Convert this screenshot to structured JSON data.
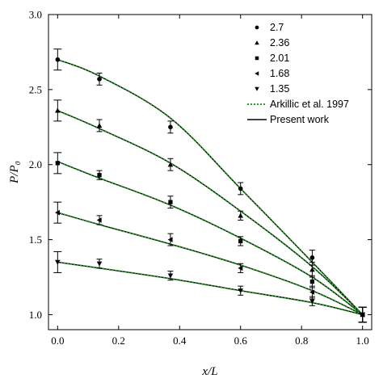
{
  "chart_data": {
    "type": "scatter",
    "xlabel": "x/L",
    "ylabel": "P/P₀",
    "xlim": [
      -0.03,
      1.03
    ],
    "ylim": [
      0.9,
      3.0
    ],
    "x_ticks": [
      "0.0",
      "0.2",
      "0.4",
      "0.6",
      "0.8",
      "1.0"
    ],
    "y_ticks": [
      "1.0",
      "1.5",
      "2.0",
      "2.5",
      "3.0"
    ],
    "legend_position": "top-right",
    "colors": {
      "arkillic": "#2ca02c",
      "present": "#000000",
      "markers": "#000000"
    },
    "series": [
      {
        "name": "2.7",
        "marker": "circle",
        "x": [
          0.0,
          0.137,
          0.37,
          0.6,
          0.835,
          1.0
        ],
        "y": [
          2.7,
          2.57,
          2.25,
          1.84,
          1.38,
          1.0
        ],
        "err": [
          0.07,
          0.04,
          0.04,
          0.04,
          0.05,
          0.05
        ],
        "curve": [
          [
            0.0,
            2.7
          ],
          [
            0.137,
            2.59
          ],
          [
            0.37,
            2.31
          ],
          [
            0.6,
            1.84
          ],
          [
            0.835,
            1.35
          ],
          [
            1.0,
            1.0
          ]
        ]
      },
      {
        "name": "2.36",
        "marker": "triangle-up",
        "x": [
          0.0,
          0.137,
          0.37,
          0.6,
          0.835,
          1.0
        ],
        "y": [
          2.36,
          2.26,
          2.0,
          1.66,
          1.3,
          1.0
        ],
        "err": [
          0.07,
          0.04,
          0.04,
          0.03,
          0.05,
          0.05
        ],
        "curve": [
          [
            0.0,
            2.36
          ],
          [
            0.137,
            2.24
          ],
          [
            0.37,
            2.01
          ],
          [
            0.6,
            1.69
          ],
          [
            0.835,
            1.32
          ],
          [
            1.0,
            1.0
          ]
        ]
      },
      {
        "name": "2.01",
        "marker": "square",
        "x": [
          0.0,
          0.137,
          0.37,
          0.6,
          0.835,
          1.0
        ],
        "y": [
          2.01,
          1.93,
          1.75,
          1.49,
          1.22,
          1.0
        ],
        "err": [
          0.07,
          0.03,
          0.04,
          0.03,
          0.04,
          0.05
        ],
        "curve": [
          [
            0.0,
            2.02
          ],
          [
            0.137,
            1.91
          ],
          [
            0.37,
            1.73
          ],
          [
            0.6,
            1.51
          ],
          [
            0.835,
            1.25
          ],
          [
            1.0,
            1.0
          ]
        ]
      },
      {
        "name": "1.68",
        "marker": "triangle-left",
        "x": [
          0.0,
          0.137,
          0.37,
          0.6,
          0.835,
          1.0
        ],
        "y": [
          1.68,
          1.63,
          1.5,
          1.31,
          1.15,
          1.0
        ],
        "err": [
          0.07,
          0.03,
          0.04,
          0.03,
          0.04,
          0.05
        ],
        "curve": [
          [
            0.0,
            1.68
          ],
          [
            0.137,
            1.6
          ],
          [
            0.37,
            1.47
          ],
          [
            0.6,
            1.33
          ],
          [
            0.835,
            1.16
          ],
          [
            1.0,
            1.0
          ]
        ]
      },
      {
        "name": "1.35",
        "marker": "triangle-down",
        "x": [
          0.0,
          0.137,
          0.37,
          0.6,
          0.835,
          1.0
        ],
        "y": [
          1.35,
          1.34,
          1.26,
          1.16,
          1.09,
          1.0
        ],
        "err": [
          0.07,
          0.03,
          0.03,
          0.03,
          0.03,
          0.05
        ],
        "curve": [
          [
            0.0,
            1.35
          ],
          [
            0.137,
            1.31
          ],
          [
            0.37,
            1.24
          ],
          [
            0.6,
            1.16
          ],
          [
            0.835,
            1.08
          ],
          [
            1.0,
            1.0
          ]
        ]
      }
    ],
    "line_legend": [
      {
        "name": "Arkillic et al. 1997",
        "style": "dotted"
      },
      {
        "name": "Present work",
        "style": "solid"
      }
    ]
  }
}
